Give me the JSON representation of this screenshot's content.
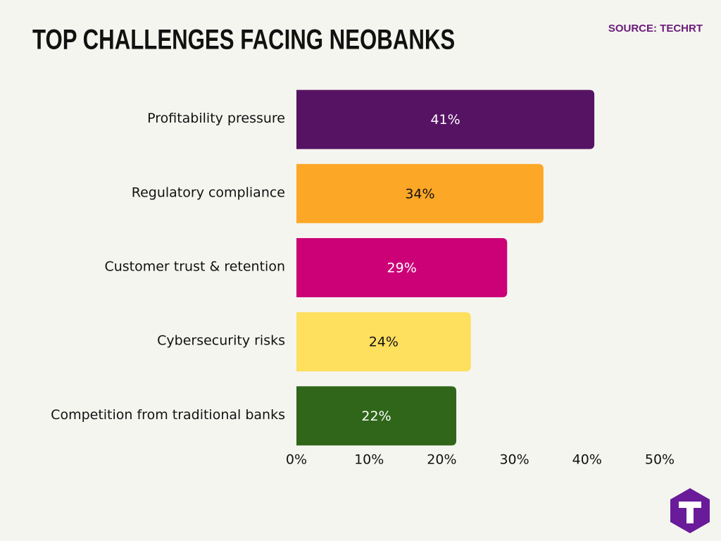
{
  "chart_data": {
    "type": "bar",
    "orientation": "horizontal",
    "title": "TOP CHALLENGES FACING NEOBANKS",
    "source": "SOURCE: TECHRT",
    "categories": [
      "Profitability pressure",
      "Regulatory compliance",
      "Customer trust & retention",
      "Cybersecurity risks",
      "Competition from traditional banks"
    ],
    "values": [
      41,
      34,
      29,
      24,
      22
    ],
    "value_labels": [
      "41%",
      "34%",
      "29%",
      "24%",
      "22%"
    ],
    "colors": [
      "#561363",
      "#fda726",
      "#cc0077",
      "#fedf5e",
      "#2f6619"
    ],
    "xlim": [
      0,
      50
    ],
    "xticks": [
      {
        "value": 0,
        "label": "0%"
      },
      {
        "value": 10,
        "label": "10%"
      },
      {
        "value": 20,
        "label": "20%"
      },
      {
        "value": 30,
        "label": "30%"
      },
      {
        "value": 40,
        "label": "40%"
      },
      {
        "value": 50,
        "label": "50%"
      }
    ],
    "grid": false
  }
}
